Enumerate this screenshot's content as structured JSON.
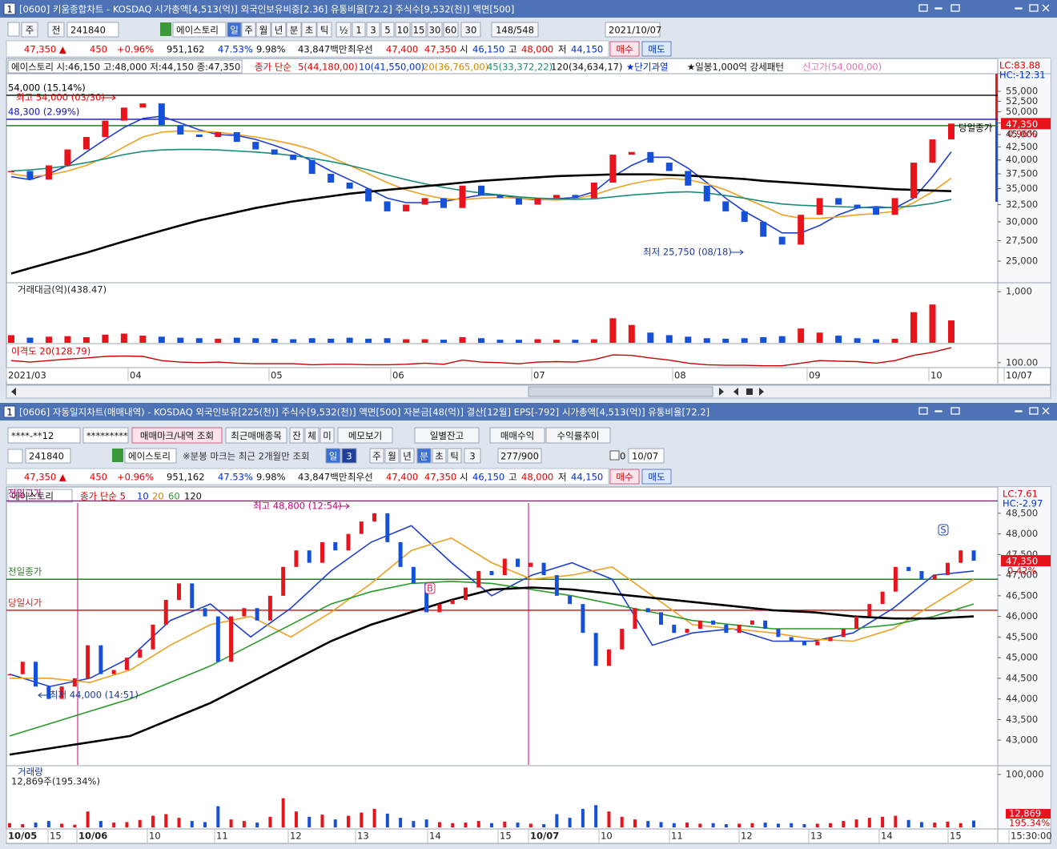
{
  "w1": {
    "num": "1",
    "title": "[0600] 키움종합차트 - KOSDAQ 시가총액[4,513(억)] 외국인보유비중[2.36] 유통비율[72.2] 주식수[9,532(천)] 액면[500]",
    "tools": [
      "주",
      "전",
      "241840",
      "에이스토리",
      "일",
      "주",
      "월",
      "년",
      "분",
      "초",
      "틱",
      "½",
      "1",
      "3",
      "5",
      "10",
      "15",
      "30",
      "60",
      "30",
      "148/548",
      "2021/10/07"
    ],
    "quote": [
      "47,350 ▲",
      "450",
      "+0.96%",
      "951,162",
      "47.53%",
      "9.98%",
      "43,847백만",
      "최우선",
      "47,400",
      "47,350",
      "시",
      "46,150",
      "고",
      "48,000",
      "저",
      "44,150",
      "매수",
      "매도"
    ],
    "legend": [
      "에이스토리 시:46,150 고:48,000 저:44,150 종:47,350",
      "종가 단순",
      "5(44,180,00)",
      "10(41,550,00)",
      "20(36,765,00)",
      "45(33,372,22)",
      "120(34,634,17)",
      "★단기과열",
      "★일봉1,000억 강세패턴",
      "신고가(54,000,00)"
    ],
    "lc": "LC:83.88",
    "hc": "HC:-12.31",
    "price": {
      "type": "candlestick",
      "log_scale": true,
      "ylim": [
        22700,
        59700
      ],
      "yticks": [
        {
          "value": 55000,
          "label": "55,000"
        },
        {
          "value": 52500,
          "label": "52,500"
        },
        {
          "value": 50000,
          "label": "50,000"
        },
        {
          "value": 47500,
          "label": "47,500"
        },
        {
          "value": 45000,
          "label": "45,000"
        },
        {
          "value": 42500,
          "label": "42,500"
        },
        {
          "value": 40000,
          "label": "40,000"
        },
        {
          "value": 37500,
          "label": "37,500"
        },
        {
          "value": 35000,
          "label": "35,000"
        },
        {
          "value": 32500,
          "label": "32,500"
        },
        {
          "value": 30000,
          "label": "30,000"
        },
        {
          "value": 27500,
          "label": "27,500"
        },
        {
          "value": 25000,
          "label": "25,000"
        }
      ],
      "up_color": "#e8141c",
      "down_color": "#1450d8",
      "closes": [
        38000,
        36500,
        39000,
        42000,
        44500,
        48000,
        51000,
        52000,
        47000,
        45000,
        44500,
        45500,
        43500,
        42000,
        41000,
        40000,
        37500,
        36000,
        35000,
        33000,
        31500,
        32500,
        33500,
        32000,
        35500,
        34000,
        33500,
        32500,
        33500,
        34000,
        33500,
        36000,
        41000,
        41500,
        39500,
        38000,
        35500,
        33000,
        31500,
        30000,
        28000,
        27000,
        31000,
        33500,
        32500,
        32000,
        31000,
        33500,
        39500,
        44000,
        47350
      ],
      "ma": [
        {
          "color": "#1f3fd0",
          "values": [
            37000,
            36500,
            37500,
            39000,
            41500,
            44000,
            46500,
            48500,
            49000,
            47500,
            46000,
            45000,
            44800,
            44000,
            42800,
            41500,
            39800,
            38000,
            36500,
            35000,
            33500,
            32800,
            32800,
            33000,
            33500,
            34000,
            34000,
            33500,
            33200,
            33400,
            33600,
            34500,
            37000,
            39000,
            40500,
            40500,
            38500,
            36000,
            33500,
            31500,
            30000,
            28500,
            28500,
            29500,
            31000,
            32000,
            32200,
            32000,
            33500,
            37000,
            41550
          ]
        },
        {
          "color": "#f0a020",
          "values": [
            37500,
            37000,
            37300,
            38000,
            39000,
            40500,
            42500,
            44500,
            45500,
            45800,
            45700,
            45500,
            45000,
            44500,
            43800,
            43000,
            42000,
            40500,
            39000,
            37500,
            36000,
            34800,
            34000,
            33400,
            33300,
            33500,
            33600,
            33500,
            33300,
            33200,
            33400,
            34000,
            35000,
            35800,
            36400,
            36700,
            36500,
            35800,
            34800,
            33500,
            32300,
            31000,
            30500,
            30500,
            30700,
            31000,
            31200,
            31500,
            32800,
            34500,
            36765
          ]
        },
        {
          "color": "#1a8a7a",
          "values": [
            38000,
            38200,
            38500,
            38900,
            39500,
            40200,
            41000,
            41600,
            41900,
            42000,
            42000,
            41900,
            41700,
            41500,
            41200,
            40800,
            40300,
            39700,
            39000,
            38200,
            37300,
            36500,
            35800,
            35200,
            34700,
            34300,
            34000,
            33700,
            33500,
            33400,
            33300,
            33400,
            33700,
            34000,
            34200,
            34400,
            34500,
            34300,
            33900,
            33500,
            33000,
            32600,
            32400,
            32300,
            32200,
            32100,
            32000,
            32100,
            32300,
            32700,
            33300
          ]
        },
        {
          "color": "#000000",
          "values": [
            23600,
            24200,
            24800,
            25400,
            26000,
            26700,
            27400,
            28100,
            28800,
            29500,
            30200,
            30800,
            31400,
            32000,
            32500,
            33000,
            33400,
            33800,
            34200,
            34500,
            34800,
            35100,
            35400,
            35700,
            36000,
            36300,
            36500,
            36700,
            36900,
            37100,
            37200,
            37300,
            37400,
            37400,
            37400,
            37300,
            37200,
            37000,
            36800,
            36600,
            36300,
            36100,
            35900,
            35700,
            35500,
            35300,
            35100,
            34900,
            34800,
            34700,
            34600
          ]
        }
      ],
      "ref_lines": [
        {
          "value": 54000,
          "label": "54,000 (15.14%)",
          "color": "#000000"
        },
        {
          "value": 48300,
          "label": "48,300 (2.99%)",
          "color": "#1010c0"
        },
        {
          "value": 46900,
          "color": "#2a7a2a"
        }
      ],
      "last": {
        "value": 47350,
        "label": "47,350"
      },
      "change_label": "0.96%",
      "close_note": "당일종가",
      "high_note": "최고 54,000 (03/30)",
      "low_note": "최저 25,750 (08/18)"
    },
    "volume": {
      "title": "거래대금(억)(438.47)",
      "ylim": [
        0,
        1160
      ],
      "yticks": [
        {
          "value": 1000,
          "label": "1,000"
        }
      ],
      "values": [
        150,
        100,
        120,
        130,
        110,
        160,
        180,
        140,
        120,
        100,
        90,
        80,
        100,
        90,
        80,
        70,
        90,
        80,
        100,
        80,
        90,
        70,
        70,
        60,
        110,
        90,
        60,
        60,
        70,
        60,
        60,
        70,
        480,
        350,
        200,
        150,
        120,
        90,
        80,
        90,
        110,
        130,
        280,
        200,
        140,
        90,
        70,
        80,
        600,
        750,
        438.47
      ]
    },
    "disparity": {
      "title": "이격도 20(128.79)",
      "color": "#c80000",
      "ylim": [
        92,
        132
      ],
      "yticks": [
        {
          "value": 100,
          "label": "100.00"
        }
      ],
      "values": [
        104,
        101,
        104,
        107,
        109,
        112,
        113,
        112,
        104,
        101,
        100,
        101,
        99,
        98,
        98,
        98,
        96,
        97,
        97,
        96,
        96,
        97,
        99,
        97,
        105,
        101,
        100,
        98,
        101,
        102,
        101,
        106,
        115,
        114,
        109,
        105,
        99,
        96,
        95,
        95,
        94,
        94,
        99,
        104,
        103,
        102,
        99,
        104,
        114,
        120,
        128.79
      ]
    },
    "xlabels": [
      "2021/03",
      "04",
      "05",
      "06",
      "07",
      "08",
      "09",
      "10",
      "10/07"
    ]
  },
  "w2": {
    "num": "1",
    "title": "[0606] 자동일지차트(매매내역) - KOSDAQ 외국인보유[225(천)] 주식수[9,532(천)] 액면[500] 자본금[48(억)] 결산[12월] EPS[-792] 시가총액[4,513(억)] 유통비율[72.2]",
    "buttons": [
      "****-**12",
      "*********",
      "매매마크/내역 조회",
      "최근매매종목",
      "잔",
      "체",
      "미",
      "메모보기",
      "일별잔고",
      "매매수익",
      "수익률추이"
    ],
    "tools": [
      "241840",
      "에이스토리",
      "※분봉 마크는 최근 2개월만 조회",
      "일",
      "3",
      "주",
      "월",
      "년",
      "분",
      "초",
      "틱",
      "3",
      "277/900",
      "0",
      "10/07"
    ],
    "quote": [
      "47,350 ▲",
      "450",
      "+0.96%",
      "951,162",
      "47.53%",
      "9.98%",
      "43,847백만",
      "최우선",
      "47,400",
      "47,350",
      "시",
      "46,150",
      "고",
      "48,000",
      "저",
      "44,150",
      "매수",
      "매도"
    ],
    "legend": [
      "에이스토리",
      "종가 단순 5",
      "10",
      "20",
      "60",
      "120"
    ],
    "lc": "LC:7.61",
    "hc": "HC:-2.97",
    "price": {
      "type": "candlestick",
      "log_scale": false,
      "ylim": [
        42400,
        49060
      ],
      "yticks": [
        {
          "value": 48500,
          "label": "48,500"
        },
        {
          "value": 48000,
          "label": "48,000"
        },
        {
          "value": 47500,
          "label": "47,500"
        },
        {
          "value": 47000,
          "label": "47,000"
        },
        {
          "value": 46500,
          "label": "46,500"
        },
        {
          "value": 46000,
          "label": "46,000"
        },
        {
          "value": 45500,
          "label": "45,500"
        },
        {
          "value": 45000,
          "label": "45,000"
        },
        {
          "value": 44500,
          "label": "44,500"
        },
        {
          "value": 44000,
          "label": "44,000"
        },
        {
          "value": 43500,
          "label": "43,500"
        },
        {
          "value": 43000,
          "label": "43,000"
        }
      ],
      "up_color": "#e8141c",
      "down_color": "#1450d8",
      "closes": [
        44600,
        44900,
        44300,
        44000,
        44300,
        44500,
        45300,
        44600,
        44700,
        45000,
        45200,
        45800,
        46400,
        46800,
        46200,
        46000,
        44900,
        46000,
        46200,
        45900,
        46500,
        47200,
        47600,
        47300,
        47800,
        47600,
        48000,
        48300,
        48500,
        47800,
        47200,
        46800,
        46100,
        46300,
        46400,
        46700,
        47100,
        47000,
        47400,
        47200,
        47300,
        47000,
        46500,
        46300,
        45600,
        44800,
        45200,
        45700,
        46200,
        46100,
        45800,
        45600,
        45700,
        45900,
        45800,
        45600,
        45800,
        45900,
        45700,
        45500,
        45400,
        45300,
        45400,
        45500,
        45700,
        46000,
        46300,
        46600,
        47200,
        47100,
        46900,
        47000,
        47300,
        47600,
        47350
      ],
      "ma": [
        {
          "color": "#1f3fd0",
          "values": [
            44600,
            44300,
            44500,
            45000,
            45900,
            46300,
            45500,
            46200,
            47100,
            47800,
            48200,
            47300,
            46500,
            47000,
            47300,
            46900,
            45300,
            45600,
            45700,
            45400,
            45400,
            45600,
            46200,
            47000,
            47100
          ]
        },
        {
          "color": "#f0a020",
          "values": [
            44500,
            44500,
            44400,
            44700,
            45300,
            45800,
            46000,
            45500,
            46100,
            46800,
            47600,
            47900,
            47300,
            46900,
            47000,
            47200,
            46500,
            45800,
            45700,
            45600,
            45450,
            45400,
            45700,
            46300,
            46900
          ]
        },
        {
          "color": "#2a9a2a",
          "values": [
            43100,
            43400,
            43700,
            44000,
            44400,
            44800,
            45300,
            45800,
            46300,
            46600,
            46800,
            46850,
            46800,
            46650,
            46500,
            46300,
            46100,
            45900,
            45800,
            45700,
            45700,
            45700,
            45800,
            46000,
            46300
          ]
        },
        {
          "color": "#000000",
          "values": [
            42650,
            42800,
            42950,
            43100,
            43500,
            43900,
            44400,
            44900,
            45400,
            45800,
            46100,
            46400,
            46650,
            46700,
            46650,
            46550,
            46450,
            46350,
            46250,
            46150,
            46100,
            46000,
            45950,
            45950,
            46000
          ]
        }
      ],
      "ref_lines": [
        {
          "value": 48800,
          "label": "전일고가",
          "color": "#c0007a"
        },
        {
          "value": 46900,
          "label": "전일종가",
          "color": "#2a7a2a"
        },
        {
          "value": 46150,
          "label": "당일시가",
          "color": "#d02020"
        }
      ],
      "last": {
        "value": 47350,
        "label": "47,350"
      },
      "change_label": "0.42%",
      "high_note": "최고 48,800 (12:54)",
      "low_note": "최저 44,000 (14:51)",
      "marks": [
        "B",
        "S"
      ]
    },
    "volume": {
      "title": "거래량",
      "subtitle": "12,869주(195.34%)",
      "ylim": [
        0,
        115000
      ],
      "yticks": [
        {
          "value": 100000,
          "label": "100,000"
        }
      ],
      "values": [
        8000,
        6000,
        9000,
        12000,
        7000,
        5000,
        30000,
        12000,
        9000,
        10000,
        14000,
        22000,
        25000,
        18000,
        12000,
        10000,
        40000,
        15000,
        12000,
        9000,
        20000,
        55000,
        30000,
        20000,
        24000,
        15000,
        22000,
        28000,
        35000,
        26000,
        18000,
        12000,
        15000,
        10000,
        8000,
        9000,
        12000,
        8000,
        11000,
        9000,
        7000,
        6000,
        25000,
        18000,
        35000,
        42000,
        30000,
        20000,
        15000,
        12000,
        10000,
        8000,
        9000,
        7000,
        8000,
        6000,
        7000,
        8000,
        9000,
        7000,
        8000,
        6000,
        7000,
        8000,
        12000,
        15000,
        18000,
        20000,
        22000,
        14000,
        10000,
        9000,
        11000,
        8000,
        12869
      ],
      "last_label": "12,869",
      "ratio_label": "195.34%"
    },
    "xlabels": [
      "10/05",
      "15",
      "10/06",
      "10",
      "11",
      "12",
      "13",
      "14",
      "15",
      "10/07",
      "10",
      "11",
      "12",
      "13",
      "14",
      "15",
      "15:30:00"
    ]
  }
}
